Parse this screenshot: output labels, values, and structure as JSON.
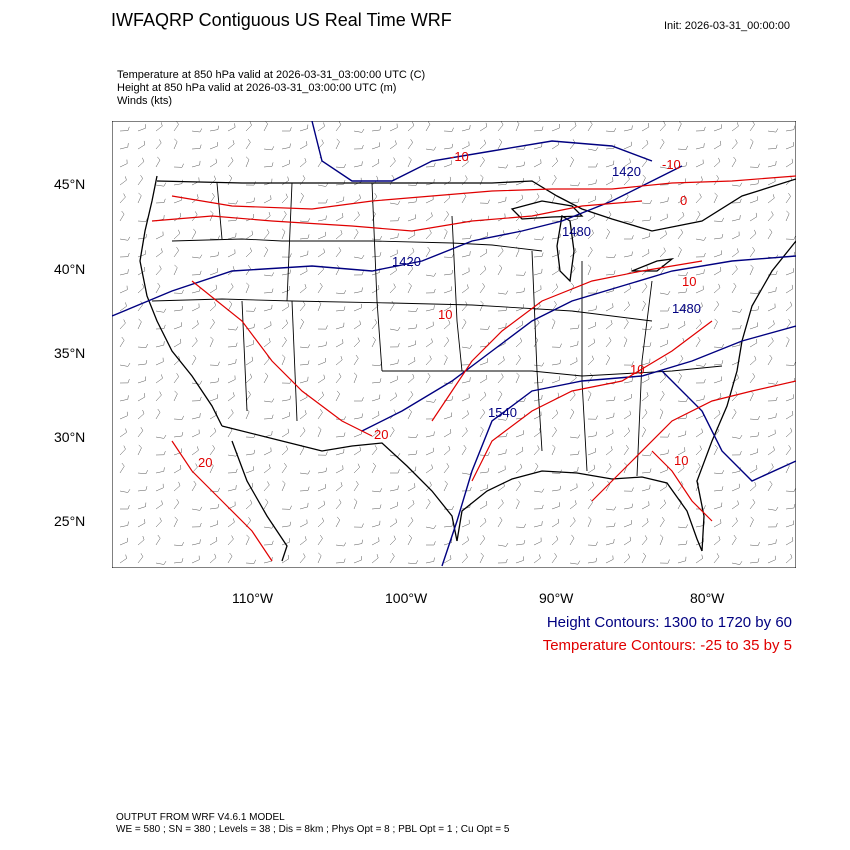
{
  "header": {
    "title": "IWFAQRP Contiguous US Real Time WRF",
    "init": "Init: 2026-03-31_00:00:00",
    "lines": [
      "Temperature at 850 hPa valid at 2026-03-31_03:00:00 UTC   (C)",
      "Height at 850 hPa valid at 2026-03-31_03:00:00 UTC   (m)",
      "Winds   (kts)"
    ]
  },
  "axes": {
    "lat_labels": [
      "45°N",
      "40°N",
      "35°N",
      "30°N",
      "25°N"
    ],
    "lon_labels": [
      "110°W",
      "100°W",
      "90°W",
      "80°W"
    ]
  },
  "map": {
    "contour_labels_height": [
      "1420",
      "1420",
      "1480",
      "1480",
      "1540"
    ],
    "contour_labels_temp": [
      "-10",
      "-10",
      "0",
      "10",
      "10",
      "10",
      "20",
      "20",
      "10"
    ],
    "colors": {
      "height": "#000080",
      "temperature": "#e00000",
      "boundaries": "#000000",
      "barbs": "#000000"
    }
  },
  "legend": {
    "height": "Height Contours: 1300 to 1720 by 60",
    "temperature": "Temperature Contours: -25 to 35 by 5"
  },
  "footer": {
    "line1": "OUTPUT FROM WRF V4.6.1 MODEL",
    "line2": "WE = 580 ; SN = 380 ; Levels = 38 ; Dis = 8km ; Phys Opt = 8 ; PBL Opt = 1 ; Cu Opt = 5"
  }
}
